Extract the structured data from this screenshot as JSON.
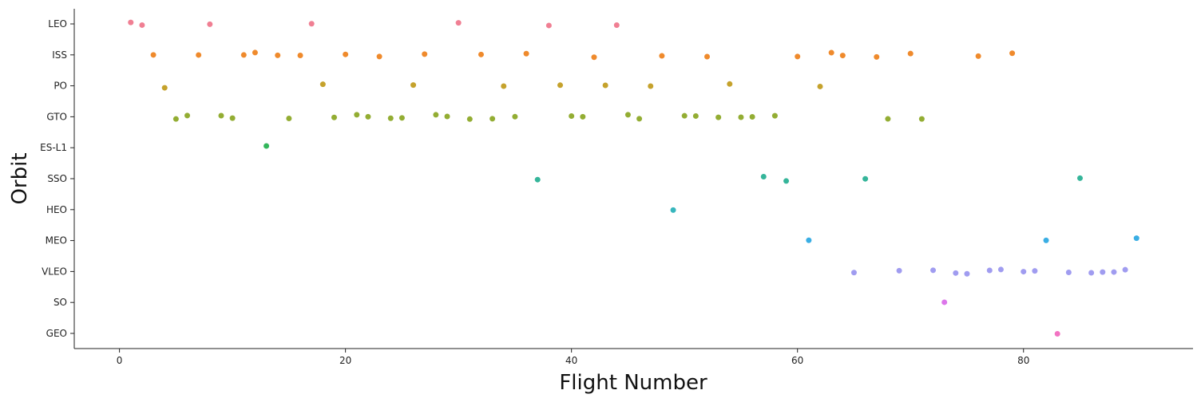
{
  "chart_data": {
    "type": "scatter",
    "xlabel": "Flight Number",
    "ylabel": "Orbit",
    "xlim": [
      -4,
      95
    ],
    "xticks": [
      0,
      20,
      40,
      60,
      80
    ],
    "categories": [
      "LEO",
      "ISS",
      "PO",
      "GTO",
      "ES-L1",
      "SSO",
      "HEO",
      "MEO",
      "VLEO",
      "SO",
      "GEO"
    ],
    "grid": false,
    "colors": {
      "LEO": "#f07f93",
      "ISS": "#ef8a2c",
      "PO": "#c5a22c",
      "GTO": "#93ad33",
      "ES-L1": "#33b65b",
      "SSO": "#35b59a",
      "HEO": "#37b6bd",
      "MEO": "#3aaee4",
      "VLEO": "#a09cf0",
      "SO": "#dc76ea",
      "GEO": "#f273c2"
    },
    "points": [
      {
        "x": 1,
        "y": "LEO"
      },
      {
        "x": 2,
        "y": "LEO"
      },
      {
        "x": 8,
        "y": "LEO"
      },
      {
        "x": 17,
        "y": "LEO"
      },
      {
        "x": 30,
        "y": "LEO"
      },
      {
        "x": 38,
        "y": "LEO"
      },
      {
        "x": 44,
        "y": "LEO"
      },
      {
        "x": 3,
        "y": "ISS"
      },
      {
        "x": 7,
        "y": "ISS"
      },
      {
        "x": 11,
        "y": "ISS"
      },
      {
        "x": 12,
        "y": "ISS"
      },
      {
        "x": 14,
        "y": "ISS"
      },
      {
        "x": 16,
        "y": "ISS"
      },
      {
        "x": 20,
        "y": "ISS"
      },
      {
        "x": 23,
        "y": "ISS"
      },
      {
        "x": 27,
        "y": "ISS"
      },
      {
        "x": 32,
        "y": "ISS"
      },
      {
        "x": 36,
        "y": "ISS"
      },
      {
        "x": 42,
        "y": "ISS"
      },
      {
        "x": 48,
        "y": "ISS"
      },
      {
        "x": 52,
        "y": "ISS"
      },
      {
        "x": 60,
        "y": "ISS"
      },
      {
        "x": 63,
        "y": "ISS"
      },
      {
        "x": 64,
        "y": "ISS"
      },
      {
        "x": 67,
        "y": "ISS"
      },
      {
        "x": 70,
        "y": "ISS"
      },
      {
        "x": 76,
        "y": "ISS"
      },
      {
        "x": 79,
        "y": "ISS"
      },
      {
        "x": 4,
        "y": "PO"
      },
      {
        "x": 18,
        "y": "PO"
      },
      {
        "x": 26,
        "y": "PO"
      },
      {
        "x": 34,
        "y": "PO"
      },
      {
        "x": 39,
        "y": "PO"
      },
      {
        "x": 43,
        "y": "PO"
      },
      {
        "x": 47,
        "y": "PO"
      },
      {
        "x": 54,
        "y": "PO"
      },
      {
        "x": 62,
        "y": "PO"
      },
      {
        "x": 5,
        "y": "GTO"
      },
      {
        "x": 6,
        "y": "GTO"
      },
      {
        "x": 9,
        "y": "GTO"
      },
      {
        "x": 10,
        "y": "GTO"
      },
      {
        "x": 15,
        "y": "GTO"
      },
      {
        "x": 19,
        "y": "GTO"
      },
      {
        "x": 21,
        "y": "GTO"
      },
      {
        "x": 22,
        "y": "GTO"
      },
      {
        "x": 24,
        "y": "GTO"
      },
      {
        "x": 25,
        "y": "GTO"
      },
      {
        "x": 28,
        "y": "GTO"
      },
      {
        "x": 29,
        "y": "GTO"
      },
      {
        "x": 31,
        "y": "GTO"
      },
      {
        "x": 33,
        "y": "GTO"
      },
      {
        "x": 35,
        "y": "GTO"
      },
      {
        "x": 40,
        "y": "GTO"
      },
      {
        "x": 41,
        "y": "GTO"
      },
      {
        "x": 45,
        "y": "GTO"
      },
      {
        "x": 46,
        "y": "GTO"
      },
      {
        "x": 50,
        "y": "GTO"
      },
      {
        "x": 51,
        "y": "GTO"
      },
      {
        "x": 53,
        "y": "GTO"
      },
      {
        "x": 55,
        "y": "GTO"
      },
      {
        "x": 56,
        "y": "GTO"
      },
      {
        "x": 58,
        "y": "GTO"
      },
      {
        "x": 68,
        "y": "GTO"
      },
      {
        "x": 71,
        "y": "GTO"
      },
      {
        "x": 13,
        "y": "ES-L1"
      },
      {
        "x": 37,
        "y": "SSO"
      },
      {
        "x": 57,
        "y": "SSO"
      },
      {
        "x": 59,
        "y": "SSO"
      },
      {
        "x": 66,
        "y": "SSO"
      },
      {
        "x": 85,
        "y": "SSO"
      },
      {
        "x": 49,
        "y": "HEO"
      },
      {
        "x": 61,
        "y": "MEO"
      },
      {
        "x": 82,
        "y": "MEO"
      },
      {
        "x": 90,
        "y": "MEO"
      },
      {
        "x": 65,
        "y": "VLEO"
      },
      {
        "x": 69,
        "y": "VLEO"
      },
      {
        "x": 72,
        "y": "VLEO"
      },
      {
        "x": 74,
        "y": "VLEO"
      },
      {
        "x": 75,
        "y": "VLEO"
      },
      {
        "x": 77,
        "y": "VLEO"
      },
      {
        "x": 78,
        "y": "VLEO"
      },
      {
        "x": 80,
        "y": "VLEO"
      },
      {
        "x": 81,
        "y": "VLEO"
      },
      {
        "x": 84,
        "y": "VLEO"
      },
      {
        "x": 86,
        "y": "VLEO"
      },
      {
        "x": 87,
        "y": "VLEO"
      },
      {
        "x": 88,
        "y": "VLEO"
      },
      {
        "x": 89,
        "y": "VLEO"
      },
      {
        "x": 73,
        "y": "SO"
      },
      {
        "x": 83,
        "y": "GEO"
      }
    ]
  }
}
